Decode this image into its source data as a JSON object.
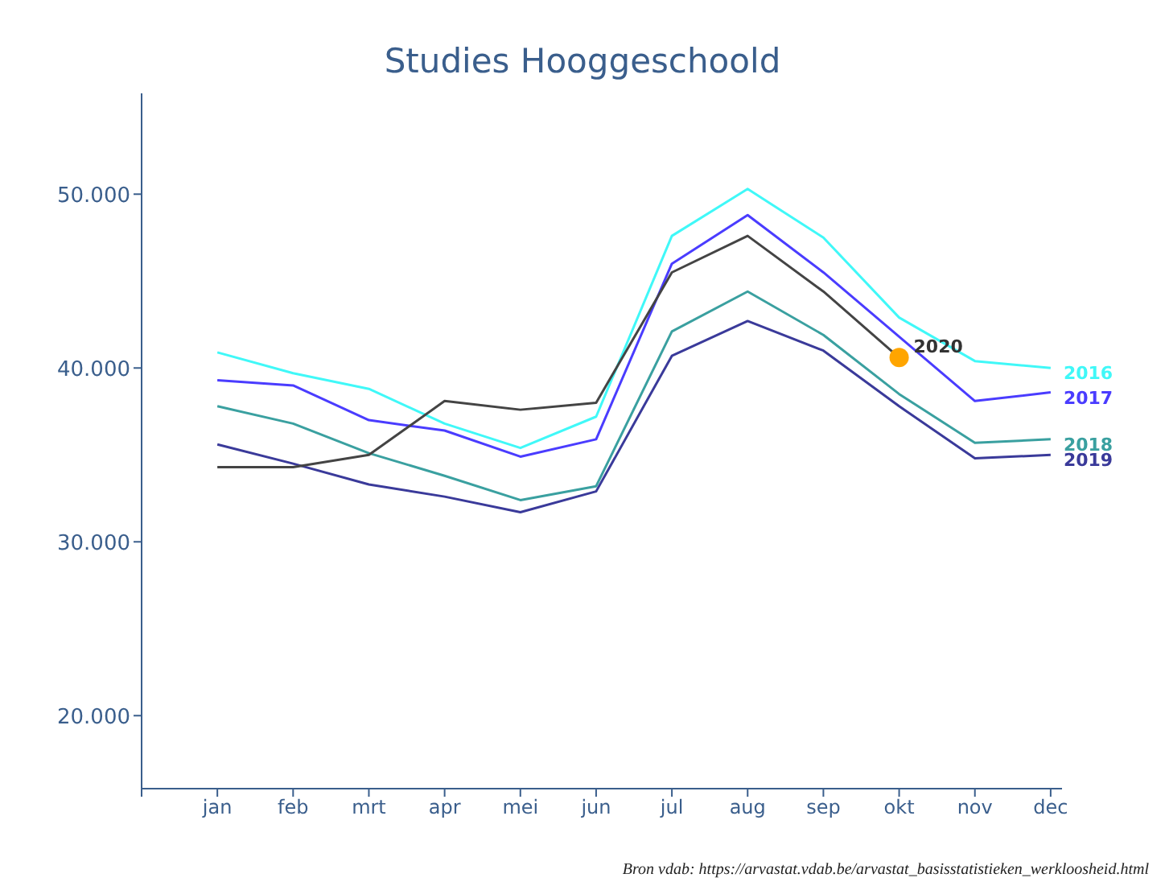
{
  "chart_data": {
    "type": "line",
    "title": "Studies Hooggeschoold",
    "categories": [
      "jan",
      "feb",
      "mrt",
      "apr",
      "mei",
      "jun",
      "jul",
      "aug",
      "sep",
      "okt",
      "nov",
      "dec"
    ],
    "series": [
      {
        "name": "2016",
        "color": "#40f8f8",
        "values": [
          40900,
          39700,
          38800,
          36800,
          35400,
          37200,
          47600,
          50300,
          47500,
          42900,
          40400,
          40000
        ]
      },
      {
        "name": "2017",
        "color": "#4a3cff",
        "values": [
          39300,
          39000,
          37000,
          36400,
          34900,
          35900,
          46000,
          48800,
          45500,
          41800,
          38100,
          38600
        ]
      },
      {
        "name": "2018",
        "color": "#3aa0a0",
        "values": [
          37800,
          36800,
          35100,
          33800,
          32400,
          33200,
          42100,
          44400,
          41900,
          38500,
          35700,
          35900
        ]
      },
      {
        "name": "2019",
        "color": "#3a3a9a",
        "values": [
          35600,
          34500,
          33300,
          32600,
          31700,
          32900,
          40700,
          42700,
          41000,
          37800,
          34800,
          35000
        ]
      },
      {
        "name": "2020",
        "color": "#444444",
        "values": [
          34300,
          34300,
          35000,
          38100,
          37600,
          38000,
          45500,
          47600,
          44400,
          40600,
          null,
          null
        ]
      }
    ],
    "ylim": [
      15800,
      55800
    ],
    "yticks": [
      {
        "value": 20000,
        "label": "20.000"
      },
      {
        "value": 30000,
        "label": "30.000"
      },
      {
        "value": 40000,
        "label": "40.000"
      },
      {
        "value": 50000,
        "label": "50.000"
      }
    ],
    "line_style": "solid",
    "annotations": [
      "Bron vdab: https://arvastat.vdab.be/arvastat_basisstatistieken_werkloosheid.html"
    ]
  }
}
